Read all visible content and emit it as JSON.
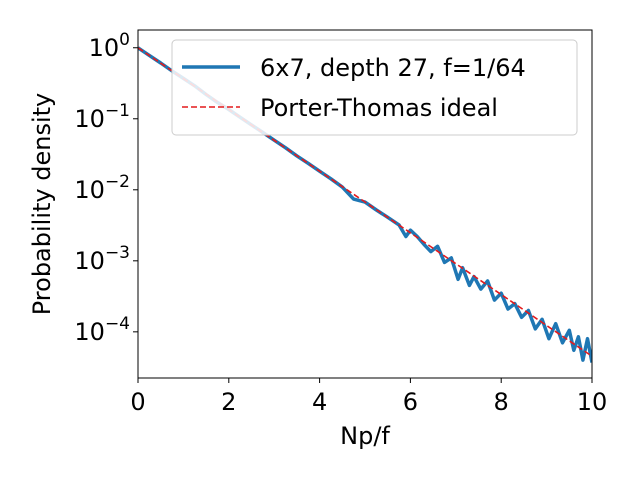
{
  "chart_data": {
    "type": "line",
    "title": "",
    "xlabel": "Np/f",
    "ylabel": "Probability density",
    "xlim": [
      0,
      10
    ],
    "ylim_log10": [
      -4.65,
      0.25
    ],
    "y_scale": "log",
    "grid": false,
    "legend_position": "top-right",
    "x_ticks": [
      0,
      2,
      4,
      6,
      8,
      10
    ],
    "x_tick_labels": [
      "0",
      "2",
      "4",
      "6",
      "8",
      "10"
    ],
    "y_tick_exponents": [
      0,
      -1,
      -2,
      -3,
      -4
    ],
    "y_tick_labels": [
      {
        "base": "10",
        "exp": "0"
      },
      {
        "base": "10",
        "exp": "−1"
      },
      {
        "base": "10",
        "exp": "−2"
      },
      {
        "base": "10",
        "exp": "−3"
      },
      {
        "base": "10",
        "exp": "−4"
      }
    ],
    "series": [
      {
        "name": "6x7, depth 27, f=1/64",
        "style": "solid",
        "color": "#1f77b4",
        "x": [
          0,
          0.25,
          0.5,
          0.75,
          1,
          1.25,
          1.5,
          1.75,
          2,
          2.25,
          2.5,
          2.75,
          3,
          3.25,
          3.5,
          3.75,
          4,
          4.25,
          4.5,
          4.75,
          5,
          5.25,
          5.5,
          5.75,
          5.9,
          6,
          6.15,
          6.3,
          6.45,
          6.6,
          6.75,
          6.9,
          7.05,
          7.15,
          7.3,
          7.4,
          7.55,
          7.7,
          7.85,
          8,
          8.15,
          8.3,
          8.45,
          8.6,
          8.75,
          8.9,
          9.05,
          9.2,
          9.35,
          9.5,
          9.6,
          9.7,
          9.8,
          9.9,
          10
        ],
        "y": [
          1.0,
          0.78,
          0.61,
          0.47,
          0.37,
          0.29,
          0.22,
          0.17,
          0.135,
          0.105,
          0.082,
          0.064,
          0.05,
          0.039,
          0.03,
          0.0235,
          0.0183,
          0.0143,
          0.0109,
          0.0074,
          0.0067,
          0.0052,
          0.0041,
          0.0032,
          0.0022,
          0.0027,
          0.0022,
          0.0017,
          0.00135,
          0.0016,
          0.00095,
          0.0011,
          0.00055,
          0.0008,
          0.00045,
          0.0006,
          0.0004,
          0.00052,
          0.00028,
          0.00035,
          0.00021,
          0.00025,
          0.00016,
          0.0002,
          0.00011,
          0.00015,
          8e-05,
          0.00013,
          7e-05,
          0.000105,
          5.5e-05,
          8.5e-05,
          4e-05,
          8e-05,
          3.7e-05
        ]
      },
      {
        "name": "Porter-Thomas ideal",
        "style": "dashed",
        "color": "#e41a1c",
        "function": "exp(-x)",
        "x": [
          0,
          1,
          2,
          3,
          4,
          5,
          6,
          7,
          8,
          9,
          10
        ],
        "y": [
          1.0,
          0.3679,
          0.1353,
          0.0498,
          0.0183,
          0.00674,
          0.00248,
          0.000912,
          0.000335,
          0.000123,
          4.54e-05
        ]
      }
    ]
  }
}
